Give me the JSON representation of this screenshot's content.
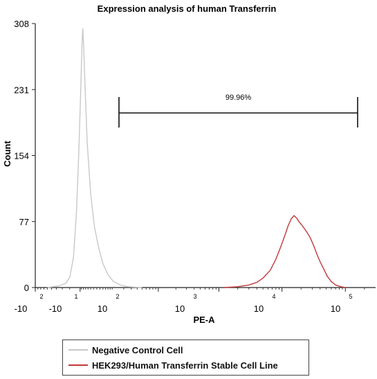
{
  "chart_data": {
    "type": "area",
    "title": "Expression analysis of human Transferrin",
    "xlabel": "PE-A",
    "ylabel": "Count",
    "x_scale": "biexponential",
    "ylim": [
      0,
      308
    ],
    "yticks": [
      "0",
      "77",
      "154",
      "231",
      "308"
    ],
    "xticks": [
      {
        "base": "-10",
        "exp": "2"
      },
      {
        "base": "-10",
        "exp": "1"
      },
      {
        "base": "10",
        "exp": "2"
      },
      {
        "base": "10",
        "exp": "3"
      },
      {
        "base": "10",
        "exp": "4"
      },
      {
        "base": "10",
        "exp": "5"
      }
    ],
    "gate": {
      "label": "99.96%",
      "x_range": [
        100,
        100000
      ]
    },
    "legend_position": "bottom",
    "series": [
      {
        "name": "Negative Control Cell",
        "color": "#c8c8c8",
        "points": [
          [
            -60,
            0
          ],
          [
            -35,
            2
          ],
          [
            -25,
            5
          ],
          [
            -20,
            12
          ],
          [
            -16,
            35
          ],
          [
            -13,
            90
          ],
          [
            -11,
            160
          ],
          [
            -9.5,
            230
          ],
          [
            -8.5,
            285
          ],
          [
            -8,
            302
          ],
          [
            -7.5,
            288
          ],
          [
            -6.5,
            240
          ],
          [
            -5,
            170
          ],
          [
            -3,
            110
          ],
          [
            -1,
            70
          ],
          [
            1,
            45
          ],
          [
            3,
            28
          ],
          [
            6,
            15
          ],
          [
            10,
            7
          ],
          [
            16,
            3
          ],
          [
            25,
            1
          ],
          [
            50,
            0
          ]
        ]
      },
      {
        "name": "HEK293/Human Transferrin Stable Cell Line",
        "color": "#c0393b",
        "points": [
          [
            1200,
            0
          ],
          [
            2000,
            1
          ],
          [
            3000,
            3
          ],
          [
            4000,
            6
          ],
          [
            5000,
            11
          ],
          [
            6500,
            20
          ],
          [
            8000,
            33
          ],
          [
            9500,
            47
          ],
          [
            11000,
            60
          ],
          [
            12500,
            72
          ],
          [
            14000,
            80
          ],
          [
            15500,
            84
          ],
          [
            17000,
            81
          ],
          [
            18500,
            77
          ],
          [
            20000,
            74
          ],
          [
            22000,
            70
          ],
          [
            25000,
            64
          ],
          [
            28000,
            58
          ],
          [
            32000,
            48
          ],
          [
            36000,
            38
          ],
          [
            40000,
            30
          ],
          [
            46000,
            21
          ],
          [
            52000,
            13
          ],
          [
            60000,
            7
          ],
          [
            70000,
            3
          ],
          [
            85000,
            1
          ],
          [
            100000,
            0
          ]
        ]
      }
    ]
  }
}
